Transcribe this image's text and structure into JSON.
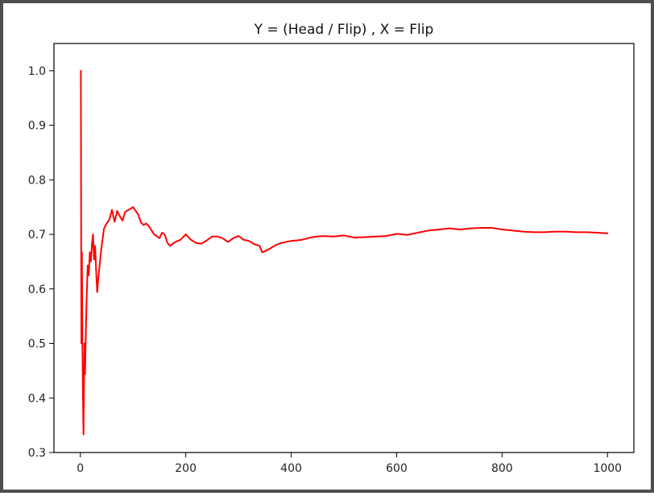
{
  "chart_data": {
    "type": "line",
    "title": "Y = (Head / Flip) , X = Flip",
    "xlabel": "",
    "ylabel": "",
    "xlim": [
      -50,
      1050
    ],
    "ylim": [
      0.3,
      1.05
    ],
    "xticks": [
      0,
      200,
      400,
      600,
      800,
      1000
    ],
    "yticks": [
      0.3,
      0.4,
      0.5,
      0.6,
      0.7,
      0.8,
      0.9,
      1.0
    ],
    "xtick_labels": [
      "0",
      "200",
      "400",
      "600",
      "800",
      "1000"
    ],
    "ytick_labels": [
      "0.3",
      "0.4",
      "0.5",
      "0.6",
      "0.7",
      "0.8",
      "0.9",
      "1.0"
    ],
    "grid": false,
    "line_color": "#ff0000",
    "series": [
      {
        "values": [
          [
            1,
            1.0
          ],
          [
            2,
            0.5
          ],
          [
            3,
            0.667
          ],
          [
            4,
            0.5
          ],
          [
            5,
            0.4
          ],
          [
            6,
            0.333
          ],
          [
            7,
            0.429
          ],
          [
            8,
            0.5
          ],
          [
            9,
            0.444
          ],
          [
            10,
            0.5
          ],
          [
            12,
            0.583
          ],
          [
            14,
            0.643
          ],
          [
            16,
            0.625
          ],
          [
            18,
            0.667
          ],
          [
            20,
            0.65
          ],
          [
            22,
            0.682
          ],
          [
            24,
            0.7
          ],
          [
            26,
            0.654
          ],
          [
            28,
            0.679
          ],
          [
            30,
            0.633
          ],
          [
            32,
            0.594
          ],
          [
            35,
            0.629
          ],
          [
            40,
            0.675
          ],
          [
            45,
            0.711
          ],
          [
            50,
            0.72
          ],
          [
            55,
            0.727
          ],
          [
            60,
            0.745
          ],
          [
            65,
            0.723
          ],
          [
            70,
            0.743
          ],
          [
            75,
            0.733
          ],
          [
            80,
            0.725
          ],
          [
            85,
            0.741
          ],
          [
            90,
            0.744
          ],
          [
            95,
            0.747
          ],
          [
            100,
            0.75
          ],
          [
            105,
            0.743
          ],
          [
            110,
            0.736
          ],
          [
            115,
            0.722
          ],
          [
            120,
            0.717
          ],
          [
            125,
            0.72
          ],
          [
            130,
            0.715
          ],
          [
            140,
            0.7
          ],
          [
            150,
            0.693
          ],
          [
            155,
            0.703
          ],
          [
            160,
            0.7
          ],
          [
            165,
            0.685
          ],
          [
            170,
            0.679
          ],
          [
            180,
            0.686
          ],
          [
            190,
            0.69
          ],
          [
            200,
            0.7
          ],
          [
            210,
            0.69
          ],
          [
            220,
            0.684
          ],
          [
            230,
            0.683
          ],
          [
            240,
            0.689
          ],
          [
            250,
            0.696
          ],
          [
            260,
            0.696
          ],
          [
            270,
            0.693
          ],
          [
            280,
            0.686
          ],
          [
            290,
            0.693
          ],
          [
            300,
            0.697
          ],
          [
            310,
            0.69
          ],
          [
            320,
            0.688
          ],
          [
            330,
            0.682
          ],
          [
            340,
            0.679
          ],
          [
            345,
            0.667
          ],
          [
            350,
            0.669
          ],
          [
            360,
            0.674
          ],
          [
            370,
            0.68
          ],
          [
            380,
            0.684
          ],
          [
            400,
            0.688
          ],
          [
            420,
            0.69
          ],
          [
            440,
            0.695
          ],
          [
            460,
            0.697
          ],
          [
            480,
            0.696
          ],
          [
            500,
            0.698
          ],
          [
            520,
            0.694
          ],
          [
            540,
            0.695
          ],
          [
            560,
            0.696
          ],
          [
            580,
            0.697
          ],
          [
            600,
            0.701
          ],
          [
            620,
            0.699
          ],
          [
            640,
            0.703
          ],
          [
            660,
            0.707
          ],
          [
            680,
            0.709
          ],
          [
            700,
            0.711
          ],
          [
            720,
            0.709
          ],
          [
            740,
            0.711
          ],
          [
            760,
            0.712
          ],
          [
            780,
            0.712
          ],
          [
            800,
            0.709
          ],
          [
            820,
            0.707
          ],
          [
            840,
            0.705
          ],
          [
            860,
            0.704
          ],
          [
            880,
            0.704
          ],
          [
            900,
            0.705
          ],
          [
            920,
            0.705
          ],
          [
            940,
            0.704
          ],
          [
            960,
            0.704
          ],
          [
            980,
            0.703
          ],
          [
            1000,
            0.702
          ]
        ]
      }
    ]
  }
}
